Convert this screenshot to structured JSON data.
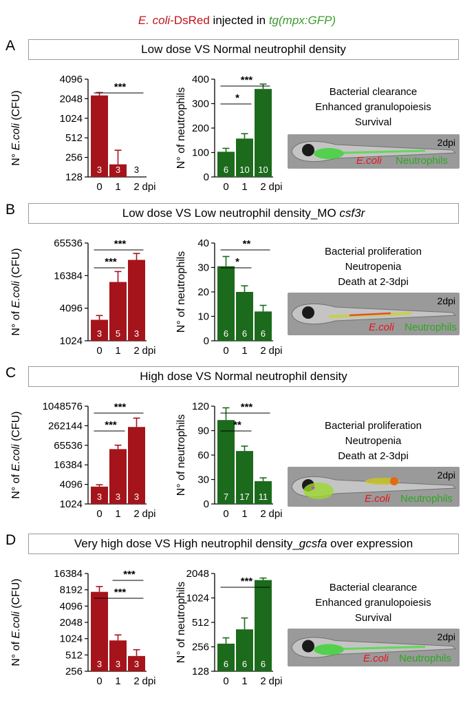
{
  "header": {
    "ecoli": "E. coli",
    "dsred": "-DsRed",
    "injected": " injected in ",
    "line": "tg(mpx:GFP)"
  },
  "panels": [
    {
      "label": "A",
      "title_parts": [
        "Low dose VS Normal neutrophil density"
      ],
      "notes": [
        "Bacterial clearance",
        "Enhanced granulopoiesis",
        "Survival"
      ],
      "fish_dpi": "2dpi",
      "fish_ecoli": "E.coli",
      "fish_neutrophils": "Neutrophils"
    },
    {
      "label": "B",
      "title_parts": [
        "Low dose VS Low neutrophil density_MO ",
        "csf3r"
      ],
      "notes": [
        "Bacterial proliferation",
        "Neutropenia",
        "Death at 2-3dpi"
      ],
      "fish_dpi": "2dpi",
      "fish_ecoli": "E.coli",
      "fish_neutrophils": "Neutrophils"
    },
    {
      "label": "C",
      "title_parts": [
        "High dose  VS Normal neutrophil density"
      ],
      "notes": [
        "Bacterial proliferation",
        "Neutropenia",
        "Death at 2-3dpi"
      ],
      "fish_dpi": "2dpi",
      "fish_ecoli": "E.coli",
      "fish_neutrophils": "Neutrophils"
    },
    {
      "label": "D",
      "title_parts": [
        "Very high dose VS High neutrophil density_",
        "gcsfa",
        " over expression"
      ],
      "notes": [
        "Bacterial clearance",
        "Enhanced granulopoiesis",
        "Survival"
      ],
      "fish_dpi": "2dpi",
      "fish_ecoli": "E.coli",
      "fish_neutrophils": "Neutrophils"
    }
  ],
  "colors": {
    "ecoli_bar": "#a5141b",
    "neutrophil_bar": "#1c6a1c",
    "header_red": "#c0141b",
    "header_green": "#3a9a2c"
  },
  "chart_data": [
    {
      "id": "A-left",
      "type": "bar",
      "scale": "log2",
      "ylabel_parts": [
        "N° ",
        "E.coli",
        " (CFU)"
      ],
      "categories": [
        "0",
        "1",
        "2"
      ],
      "x_unit": "dpi",
      "ylim": [
        128,
        4096
      ],
      "yticks": [
        128,
        256,
        512,
        1024,
        2048,
        4096
      ],
      "values": [
        2300,
        200,
        0
      ],
      "errors": [
        2550,
        330,
        0
      ],
      "n": [
        "3",
        "3",
        "3"
      ],
      "sig": [
        {
          "from": 0,
          "to": 2,
          "label": "***"
        }
      ]
    },
    {
      "id": "A-right",
      "type": "bar",
      "scale": "linear",
      "ylabel_parts": [
        "N° of neutrophils"
      ],
      "categories": [
        "0",
        "1",
        "2"
      ],
      "x_unit": "dpi",
      "ylim": [
        0,
        400
      ],
      "yticks": [
        0,
        100,
        200,
        300,
        400
      ],
      "values": [
        103,
        157,
        360
      ],
      "errors": [
        117,
        177,
        380
      ],
      "n": [
        "6",
        "10",
        "10"
      ],
      "sig": [
        {
          "from": 0,
          "to": 1,
          "label": "*"
        },
        {
          "from": 0,
          "to": 2,
          "label": "***"
        }
      ]
    },
    {
      "id": "B-left",
      "type": "bar",
      "scale": "log2",
      "ylabel_parts": [
        "N° of ",
        "E.coli",
        " (CFU)"
      ],
      "categories": [
        "0",
        "1",
        "2"
      ],
      "x_unit": "dpi",
      "ylim": [
        1024,
        65536
      ],
      "yticks": [
        1024,
        4096,
        16384,
        65536
      ],
      "values": [
        2500,
        12500,
        32000
      ],
      "errors": [
        3000,
        19500,
        42000
      ],
      "n": [
        "3",
        "5",
        "3"
      ],
      "sig": [
        {
          "from": 0,
          "to": 1,
          "label": "***"
        },
        {
          "from": 0,
          "to": 2,
          "label": "***"
        }
      ]
    },
    {
      "id": "B-right",
      "type": "bar",
      "scale": "linear",
      "ylabel_parts": [
        "N° of neutrophils"
      ],
      "categories": [
        "0",
        "1",
        "2"
      ],
      "x_unit": "dpi",
      "ylim": [
        0,
        40
      ],
      "yticks": [
        0,
        10,
        20,
        30,
        40
      ],
      "values": [
        30.5,
        20,
        12
      ],
      "errors": [
        34.5,
        22.5,
        14.5
      ],
      "n": [
        "6",
        "6",
        "6"
      ],
      "sig": [
        {
          "from": 0,
          "to": 1,
          "label": "*"
        },
        {
          "from": 0,
          "to": 2,
          "label": "**"
        }
      ]
    },
    {
      "id": "C-left",
      "type": "bar",
      "scale": "log2",
      "ylabel_parts": [
        "N° of ",
        "E.coli",
        " (CFU)"
      ],
      "categories": [
        "0",
        "1",
        "2"
      ],
      "x_unit": "dpi",
      "ylim": [
        1024,
        1048576
      ],
      "yticks": [
        1024,
        4096,
        16384,
        65536,
        262144,
        1048576
      ],
      "values": [
        3500,
        50000,
        240000
      ],
      "errors": [
        4000,
        66000,
        450000
      ],
      "n": [
        "3",
        "3",
        "3"
      ],
      "sig": [
        {
          "from": 0,
          "to": 1,
          "label": "***"
        },
        {
          "from": 0,
          "to": 2,
          "label": "***"
        }
      ]
    },
    {
      "id": "C-right",
      "type": "bar",
      "scale": "linear",
      "ylabel_parts": [
        "N° of neutrophils"
      ],
      "categories": [
        "0",
        "1",
        "2"
      ],
      "x_unit": "dpi",
      "ylim": [
        0,
        120
      ],
      "yticks": [
        0,
        30,
        60,
        90,
        120
      ],
      "values": [
        103,
        65,
        28
      ],
      "errors": [
        118,
        71,
        32
      ],
      "n": [
        "7",
        "17",
        "11"
      ],
      "sig": [
        {
          "from": 0,
          "to": 1,
          "label": "**"
        },
        {
          "from": 0,
          "to": 2,
          "label": "***"
        }
      ]
    },
    {
      "id": "D-left",
      "type": "bar",
      "scale": "log2",
      "ylabel_parts": [
        "N° of ",
        "E.coli",
        " (CFU)"
      ],
      "categories": [
        "0",
        "1",
        "2"
      ],
      "x_unit": "dpi",
      "ylim": [
        256,
        16384
      ],
      "yticks": [
        256,
        512,
        1024,
        2048,
        4096,
        8192,
        16384
      ],
      "values": [
        7500,
        950,
        490
      ],
      "errors": [
        9400,
        1200,
        640
      ],
      "n": [
        "3",
        "3",
        "3"
      ],
      "sig": [
        {
          "from": 0,
          "to": 2,
          "label": "***"
        },
        {
          "from": 1,
          "to": 2,
          "label": "***"
        }
      ]
    },
    {
      "id": "D-right",
      "type": "bar",
      "scale": "log2",
      "ylabel_parts": [
        "N° of neutrophils"
      ],
      "categories": [
        "0",
        "1",
        "2"
      ],
      "x_unit": "dpi",
      "ylim": [
        128,
        2048
      ],
      "yticks": [
        128,
        256,
        512,
        1024,
        2048
      ],
      "values": [
        280,
        420,
        1700
      ],
      "errors": [
        330,
        580,
        1800
      ],
      "n": [
        "6",
        "6",
        "6"
      ],
      "sig": [
        {
          "from": 0,
          "to": 2,
          "label": "***"
        }
      ]
    }
  ]
}
